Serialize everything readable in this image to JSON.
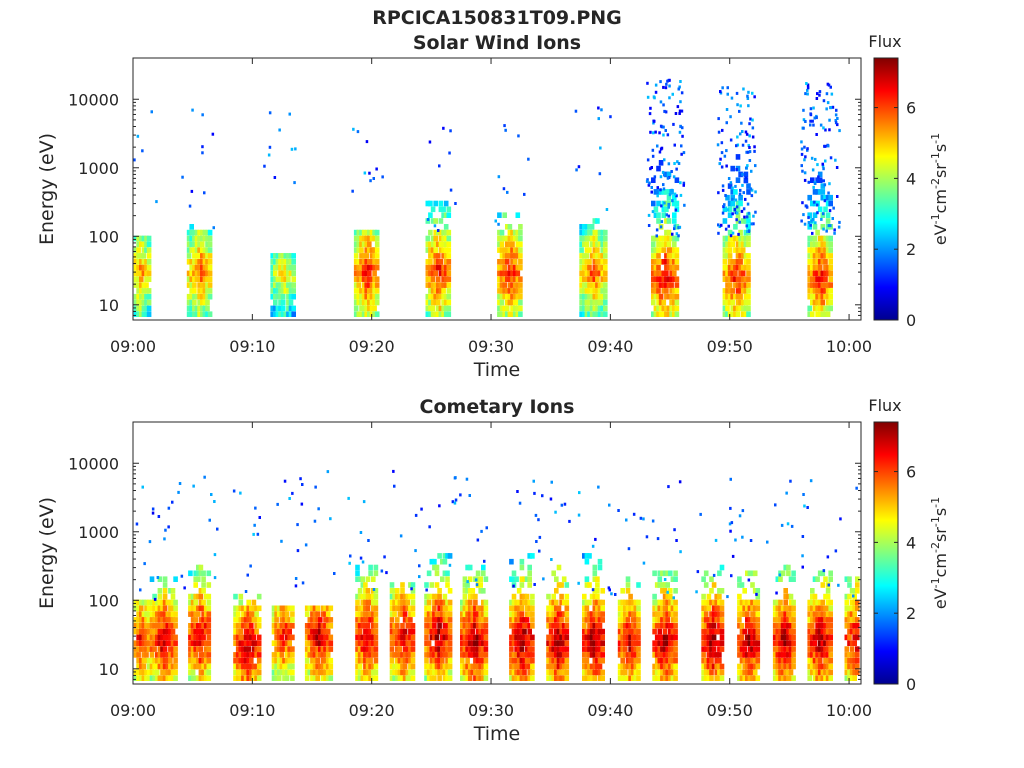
{
  "figure_title": "RPCICA150831T09.PNG",
  "colors": {
    "colormap": [
      "#00008f",
      "#0000ff",
      "#0080ff",
      "#00ffff",
      "#80ff80",
      "#ffff00",
      "#ff8000",
      "#ff0000",
      "#800000"
    ],
    "axis": "#262626"
  },
  "chart_data": [
    {
      "type": "heatmap",
      "title": "Solar Wind Ions",
      "xlabel": "Time",
      "ylabel": "Energy (eV)",
      "x_range": [
        "09:00",
        "10:01"
      ],
      "xticks": [
        "09:00",
        "09:10",
        "09:20",
        "09:30",
        "09:40",
        "09:50",
        "10:00"
      ],
      "y_scale": "log",
      "ylim": [
        6,
        40000
      ],
      "yticks": [
        "10",
        "100",
        "1000",
        "10000"
      ],
      "colorbar": {
        "label": "Flux",
        "units": "eV⁻¹cm⁻²sr⁻¹s⁻¹",
        "range": [
          0,
          7.4
        ],
        "ticks": [
          "0",
          "2",
          "4",
          "6"
        ]
      },
      "bursts": [
        {
          "t": "09:00",
          "peak_eV": 30,
          "max_flux": 5.5,
          "top_eV": 100
        },
        {
          "t": "09:05",
          "peak_eV": 30,
          "max_flux": 6.0,
          "top_eV": 140
        },
        {
          "t": "09:12",
          "peak_eV": 28,
          "max_flux": 5.0,
          "top_eV": 50
        },
        {
          "t": "09:19",
          "peak_eV": 30,
          "max_flux": 6.5,
          "top_eV": 110
        },
        {
          "t": "09:25",
          "peak_eV": 30,
          "max_flux": 6.5,
          "top_eV": 300
        },
        {
          "t": "09:31",
          "peak_eV": 30,
          "max_flux": 6.5,
          "top_eV": 200
        },
        {
          "t": "09:38",
          "peak_eV": 30,
          "max_flux": 6.0,
          "top_eV": 180
        },
        {
          "t": "09:44",
          "peak_eV": 25,
          "max_flux": 6.8,
          "top_eV": 20000
        },
        {
          "t": "09:50",
          "peak_eV": 25,
          "max_flux": 6.5,
          "top_eV": 15000
        },
        {
          "t": "09:57",
          "peak_eV": 25,
          "max_flux": 6.5,
          "top_eV": 20000
        }
      ]
    },
    {
      "type": "heatmap",
      "title": "Cometary Ions",
      "xlabel": "Time",
      "ylabel": "Energy (eV)",
      "x_range": [
        "09:00",
        "10:01"
      ],
      "xticks": [
        "09:00",
        "09:10",
        "09:20",
        "09:30",
        "09:40",
        "09:50",
        "10:00"
      ],
      "y_scale": "log",
      "ylim": [
        6,
        40000
      ],
      "yticks": [
        "10",
        "100",
        "1000",
        "10000"
      ],
      "colorbar": {
        "label": "Flux",
        "units": "eV⁻¹cm⁻²sr⁻¹s⁻¹",
        "range": [
          0,
          7.4
        ],
        "ticks": [
          "0",
          "2",
          "4",
          "6"
        ]
      },
      "bursts": [
        {
          "t": "09:00",
          "peak_eV": 25,
          "max_flux": 6.5,
          "top_eV": 100
        },
        {
          "t": "09:02",
          "peak_eV": 25,
          "max_flux": 7.0,
          "top_eV": 200
        },
        {
          "t": "09:05",
          "peak_eV": 30,
          "max_flux": 7.0,
          "top_eV": 300
        },
        {
          "t": "09:09",
          "peak_eV": 20,
          "max_flux": 7.2,
          "top_eV": 120
        },
        {
          "t": "09:12",
          "peak_eV": 30,
          "max_flux": 6.5,
          "top_eV": 80
        },
        {
          "t": "09:15",
          "peak_eV": 30,
          "max_flux": 7.0,
          "top_eV": 80
        },
        {
          "t": "09:19",
          "peak_eV": 30,
          "max_flux": 7.0,
          "top_eV": 300
        },
        {
          "t": "09:22",
          "peak_eV": 30,
          "max_flux": 7.0,
          "top_eV": 150
        },
        {
          "t": "09:25",
          "peak_eV": 30,
          "max_flux": 7.2,
          "top_eV": 400
        },
        {
          "t": "09:28",
          "peak_eV": 25,
          "max_flux": 7.3,
          "top_eV": 300
        },
        {
          "t": "09:32",
          "peak_eV": 25,
          "max_flux": 7.3,
          "top_eV": 400
        },
        {
          "t": "09:35",
          "peak_eV": 25,
          "max_flux": 7.3,
          "top_eV": 300
        },
        {
          "t": "09:38",
          "peak_eV": 25,
          "max_flux": 7.3,
          "top_eV": 400
        },
        {
          "t": "09:41",
          "peak_eV": 25,
          "max_flux": 7.0,
          "top_eV": 200
        },
        {
          "t": "09:44",
          "peak_eV": 25,
          "max_flux": 7.2,
          "top_eV": 250
        },
        {
          "t": "09:48",
          "peak_eV": 25,
          "max_flux": 7.3,
          "top_eV": 300
        },
        {
          "t": "09:51",
          "peak_eV": 25,
          "max_flux": 7.2,
          "top_eV": 250
        },
        {
          "t": "09:54",
          "peak_eV": 25,
          "max_flux": 7.2,
          "top_eV": 300
        },
        {
          "t": "09:57",
          "peak_eV": 25,
          "max_flux": 7.2,
          "top_eV": 250
        },
        {
          "t": "10:00",
          "peak_eV": 25,
          "max_flux": 7.0,
          "top_eV": 200
        }
      ]
    }
  ]
}
